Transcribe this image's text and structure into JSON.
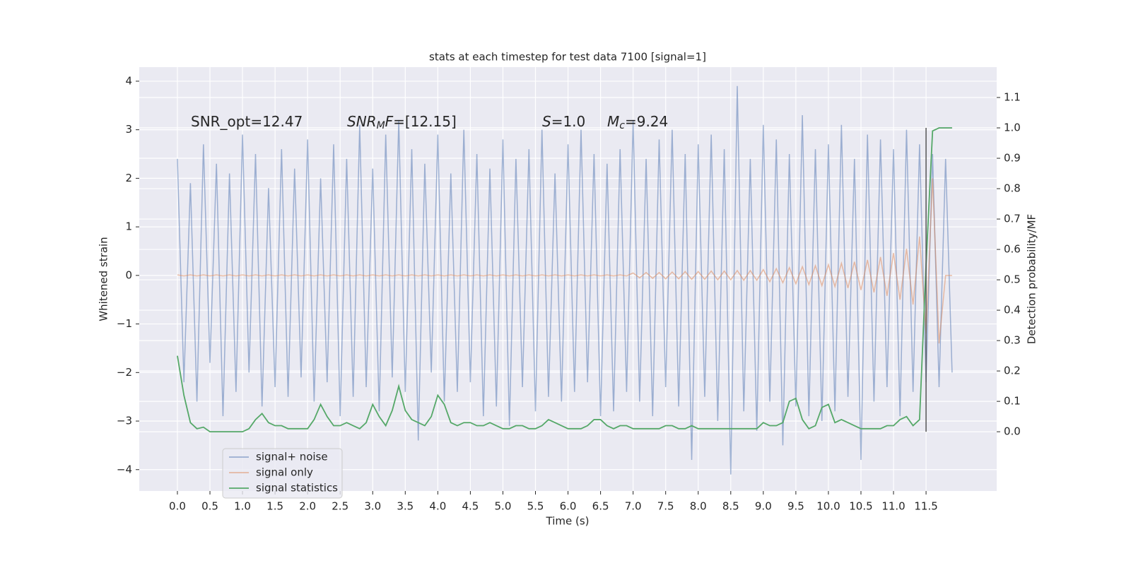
{
  "chart_data": {
    "type": "line",
    "title": "stats at each timestep for test data 7100 [signal=1]",
    "xlabel": "Time (s)",
    "ylabel": "Whitened strain",
    "y2label": "Detection probability/MF",
    "x": [
      0.0,
      0.1,
      0.2,
      0.3,
      0.4,
      0.5,
      0.6,
      0.7,
      0.8,
      0.9,
      1.0,
      1.1,
      1.2,
      1.3,
      1.4,
      1.5,
      1.6,
      1.7,
      1.8,
      1.9,
      2.0,
      2.1,
      2.2,
      2.3,
      2.4,
      2.5,
      2.6,
      2.7,
      2.8,
      2.9,
      3.0,
      3.1,
      3.2,
      3.3,
      3.4,
      3.5,
      3.6,
      3.7,
      3.8,
      3.9,
      4.0,
      4.1,
      4.2,
      4.3,
      4.4,
      4.5,
      4.6,
      4.7,
      4.8,
      4.9,
      5.0,
      5.1,
      5.2,
      5.3,
      5.4,
      5.5,
      5.6,
      5.7,
      5.8,
      5.9,
      6.0,
      6.1,
      6.2,
      6.3,
      6.4,
      6.5,
      6.6,
      6.7,
      6.8,
      6.9,
      7.0,
      7.1,
      7.2,
      7.3,
      7.4,
      7.5,
      7.6,
      7.7,
      7.8,
      7.9,
      8.0,
      8.1,
      8.2,
      8.3,
      8.4,
      8.5,
      8.6,
      8.7,
      8.8,
      8.9,
      9.0,
      9.1,
      9.2,
      9.3,
      9.4,
      9.5,
      9.6,
      9.7,
      9.8,
      9.9,
      10.0,
      10.1,
      10.2,
      10.3,
      10.4,
      10.5,
      10.6,
      10.7,
      10.8,
      10.9,
      11.0,
      11.1,
      11.2,
      11.3,
      11.4,
      11.5,
      11.6,
      11.7,
      11.8,
      11.9
    ],
    "series": [
      {
        "name": "signal+ noise",
        "color": "#4c72b0",
        "opacity": 0.5,
        "values": [
          2.4,
          -2.2,
          1.9,
          -2.6,
          2.7,
          -1.8,
          2.3,
          -2.9,
          2.1,
          -2.4,
          2.9,
          -2.0,
          2.5,
          -2.7,
          1.8,
          -2.3,
          2.6,
          -2.5,
          2.2,
          -2.1,
          2.8,
          -2.6,
          2.0,
          -2.2,
          2.7,
          -2.9,
          2.4,
          -2.5,
          3.1,
          -2.3,
          2.2,
          -2.8,
          2.9,
          -2.1,
          3.2,
          -2.4,
          2.6,
          -3.4,
          2.3,
          -2.0,
          2.9,
          -2.6,
          2.1,
          -2.4,
          3.0,
          -2.2,
          2.5,
          -2.9,
          2.2,
          -2.7,
          2.8,
          -3.1,
          2.4,
          -2.3,
          2.6,
          -2.8,
          3.0,
          -2.5,
          2.1,
          -2.6,
          2.7,
          -2.4,
          3.0,
          -2.2,
          2.5,
          -2.9,
          2.3,
          -2.8,
          2.6,
          -2.4,
          3.2,
          -2.6,
          2.4,
          -2.9,
          2.8,
          -2.3,
          3.0,
          -2.7,
          2.5,
          -3.8,
          2.7,
          -2.5,
          2.9,
          -3.0,
          2.6,
          -4.1,
          3.9,
          -2.8,
          2.4,
          -3.2,
          3.1,
          -2.6,
          2.8,
          -3.5,
          2.5,
          -2.7,
          3.3,
          -2.9,
          2.6,
          -3.0,
          2.7,
          -2.8,
          3.1,
          -2.5,
          2.4,
          -3.8,
          2.9,
          -2.6,
          2.8,
          -2.3,
          2.6,
          -2.9,
          3.0,
          -2.4,
          2.7,
          -2.2,
          2.5,
          -2.3,
          2.4,
          -2.0
        ]
      },
      {
        "name": "signal only",
        "color": "#dd8452",
        "opacity": 0.5,
        "values": [
          0.01,
          -0.01,
          0.01,
          -0.01,
          0.01,
          -0.01,
          0.01,
          -0.01,
          0.01,
          -0.01,
          0.01,
          -0.01,
          0.01,
          -0.01,
          0.01,
          -0.01,
          0.01,
          -0.01,
          0.01,
          -0.01,
          0.01,
          -0.01,
          0.01,
          -0.01,
          0.01,
          -0.01,
          0.01,
          -0.01,
          0.01,
          -0.01,
          0.01,
          -0.01,
          0.01,
          -0.01,
          0.01,
          -0.01,
          0.01,
          -0.01,
          0.01,
          -0.01,
          0.01,
          -0.01,
          0.01,
          -0.01,
          0.01,
          -0.01,
          0.01,
          -0.01,
          0.01,
          -0.01,
          0.01,
          -0.01,
          0.01,
          -0.01,
          0.01,
          -0.01,
          0.01,
          -0.01,
          0.01,
          -0.01,
          0.01,
          -0.01,
          0.01,
          -0.01,
          0.01,
          -0.01,
          0.01,
          -0.01,
          0.01,
          -0.01,
          0.05,
          -0.05,
          0.06,
          -0.06,
          0.06,
          -0.07,
          0.07,
          -0.07,
          0.08,
          -0.08,
          0.08,
          -0.08,
          0.09,
          -0.09,
          0.09,
          -0.09,
          0.1,
          -0.1,
          0.1,
          -0.1,
          0.12,
          -0.13,
          0.14,
          -0.15,
          0.16,
          -0.17,
          0.18,
          -0.19,
          0.2,
          -0.21,
          0.22,
          -0.23,
          0.25,
          -0.26,
          0.28,
          -0.3,
          0.32,
          -0.35,
          0.38,
          -0.42,
          0.46,
          -0.5,
          0.55,
          -0.6,
          0.8,
          -1.2,
          2.0,
          -1.4,
          0.0,
          0.0
        ]
      },
      {
        "name": "signal statistics",
        "color": "#55a868",
        "opacity": 1,
        "axis": "y2",
        "values": [
          0.25,
          0.12,
          0.03,
          0.01,
          0.015,
          0.0,
          0.0,
          0.0,
          0.0,
          0.0,
          0.0,
          0.01,
          0.04,
          0.06,
          0.03,
          0.02,
          0.02,
          0.01,
          0.01,
          0.01,
          0.01,
          0.04,
          0.09,
          0.05,
          0.02,
          0.02,
          0.03,
          0.02,
          0.01,
          0.03,
          0.09,
          0.05,
          0.02,
          0.07,
          0.15,
          0.07,
          0.04,
          0.03,
          0.02,
          0.05,
          0.12,
          0.09,
          0.03,
          0.02,
          0.03,
          0.03,
          0.02,
          0.02,
          0.03,
          0.02,
          0.01,
          0.01,
          0.02,
          0.02,
          0.01,
          0.01,
          0.02,
          0.04,
          0.03,
          0.02,
          0.01,
          0.01,
          0.01,
          0.02,
          0.04,
          0.04,
          0.02,
          0.01,
          0.02,
          0.02,
          0.01,
          0.01,
          0.01,
          0.01,
          0.01,
          0.02,
          0.02,
          0.01,
          0.01,
          0.02,
          0.01,
          0.01,
          0.01,
          0.01,
          0.01,
          0.01,
          0.01,
          0.01,
          0.01,
          0.01,
          0.03,
          0.02,
          0.02,
          0.03,
          0.1,
          0.11,
          0.04,
          0.01,
          0.02,
          0.08,
          0.09,
          0.03,
          0.04,
          0.03,
          0.02,
          0.01,
          0.01,
          0.01,
          0.01,
          0.02,
          0.02,
          0.04,
          0.05,
          0.02,
          0.04,
          0.55,
          0.99,
          1.0,
          1.0,
          1.0
        ]
      }
    ],
    "vline": {
      "x": 11.5,
      "ymin": 0,
      "ymax": 1,
      "axis": "y2",
      "color": "#555555"
    },
    "annotations": [
      [
        {
          "text": "SNR_opt=12.47"
        }
      ],
      [
        {
          "text": "SNR",
          "italic": true
        },
        {
          "text": "M",
          "italic": true,
          "sub": true
        },
        {
          "text": "F",
          "italic": true
        },
        {
          "text": "=[12.15]"
        }
      ],
      [
        {
          "text": "S",
          "italic": true
        },
        {
          "text": "=1.0"
        }
      ],
      [
        {
          "text": "M",
          "italic": true
        },
        {
          "text": "c",
          "italic": true,
          "sub": true
        },
        {
          "text": "=9.24"
        }
      ]
    ],
    "xlim": [
      -0.586,
      12.585
    ],
    "ylim": [
      -4.44,
      4.29
    ],
    "y2lim": [
      -0.195,
      1.2
    ],
    "xticks": [
      {
        "value": 0,
        "label": "0.0"
      },
      0.5,
      {
        "value": 1,
        "label": "1.0"
      },
      1.5,
      {
        "value": 2,
        "label": "2.0"
      },
      2.5,
      {
        "value": 3,
        "label": "3.0"
      },
      3.5,
      {
        "value": 4,
        "label": "4.0"
      },
      4.5,
      {
        "value": 5,
        "label": "5.0"
      },
      5.5,
      {
        "value": 6,
        "label": "6.0"
      },
      6.5,
      {
        "value": 7,
        "label": "7.0"
      },
      7.5,
      {
        "value": 8,
        "label": "8.0"
      },
      8.5,
      {
        "value": 9,
        "label": "9.0"
      },
      9.5,
      {
        "value": 10,
        "label": "10.0"
      },
      10.5,
      {
        "value": 11,
        "label": "11.0"
      },
      11.5
    ],
    "yticks": [
      {
        "value": -4,
        "label": "−4"
      },
      {
        "value": -3,
        "label": "−3"
      },
      {
        "value": -2,
        "label": "−2"
      },
      {
        "value": -1,
        "label": "−1"
      },
      0,
      1,
      2,
      3,
      4
    ],
    "y2ticks": [
      {
        "value": 0,
        "label": "0.0"
      },
      0.1,
      0.2,
      0.3,
      0.4,
      0.5,
      0.6,
      0.7,
      0.8,
      0.9,
      {
        "value": 1,
        "label": "1.0"
      },
      1.1
    ],
    "grid": true,
    "legend": "lower left"
  }
}
